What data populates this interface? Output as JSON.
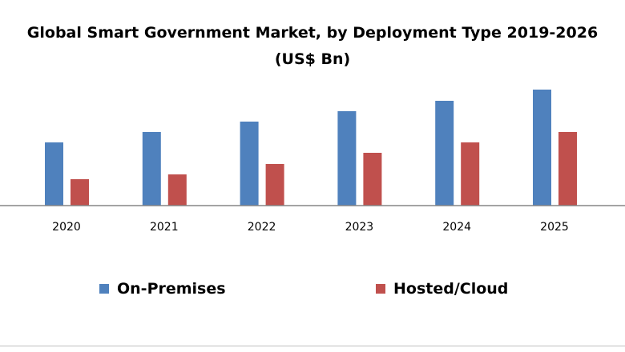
{
  "chart_data": {
    "type": "bar",
    "title": "Global Smart Government Market, by Deployment Type 2019-2026",
    "subtitle": "(US$ Bn)",
    "categories": [
      "2020",
      "2021",
      "2022",
      "2023",
      "2024",
      "2025"
    ],
    "series": [
      {
        "name": "On-Premises",
        "color": "#4f81bd",
        "values": [
          7.9,
          9.2,
          10.5,
          11.8,
          13.1,
          14.5
        ]
      },
      {
        "name": "Hosted/Cloud",
        "color": "#c0504d",
        "values": [
          3.3,
          3.9,
          5.2,
          6.6,
          7.9,
          9.2
        ]
      }
    ],
    "ylim": [
      0,
      14.5
    ],
    "grid": false,
    "y_axis_visible": false,
    "legend": "bottom"
  }
}
